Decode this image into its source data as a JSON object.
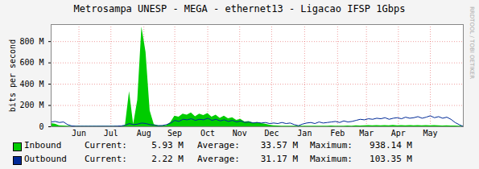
{
  "chart_data": {
    "type": "area",
    "title": "Metrosampa UNESP - MEGA - ethernet13 - Ligacao IFSP 1Gbps",
    "y_label": "bits per second",
    "annotations": [
      {
        "text": "RRDTOOL / TOBI OETIKER"
      }
    ],
    "x": [
      0,
      4,
      8,
      12,
      16,
      20,
      24,
      28,
      32,
      36,
      40,
      44,
      48,
      52,
      56,
      60,
      64,
      68,
      72,
      76,
      80,
      84,
      88,
      92,
      96,
      100,
      104,
      108,
      112,
      116,
      120,
      124,
      128,
      132,
      136,
      140,
      144,
      148,
      152,
      156,
      160,
      164,
      168,
      172,
      176,
      180,
      184,
      188,
      192,
      196,
      200,
      204,
      208,
      212,
      216,
      220,
      224,
      228,
      232,
      236,
      240,
      244,
      248,
      252,
      256,
      260,
      264,
      268,
      272,
      276,
      280,
      284,
      288,
      292,
      296,
      300,
      304,
      308,
      312,
      316,
      320,
      324,
      328,
      332,
      336,
      340,
      344,
      348,
      352,
      356,
      360,
      364,
      368,
      372,
      376,
      380,
      384,
      388,
      392,
      396,
      400
    ],
    "xlim": [
      0,
      400
    ],
    "xticks": [
      {
        "value": 27,
        "label": "Jun"
      },
      {
        "value": 58,
        "label": "Jul"
      },
      {
        "value": 90,
        "label": "Aug"
      },
      {
        "value": 120,
        "label": "Sep"
      },
      {
        "value": 152,
        "label": "Oct"
      },
      {
        "value": 183,
        "label": "Nov"
      },
      {
        "value": 214,
        "label": "Dec"
      },
      {
        "value": 246,
        "label": "Jan"
      },
      {
        "value": 278,
        "label": "Feb"
      },
      {
        "value": 306,
        "label": "Mar"
      },
      {
        "value": 337,
        "label": "Apr"
      },
      {
        "value": 368,
        "label": "May"
      }
    ],
    "ylim": [
      0,
      960000000
    ],
    "yticks": [
      0,
      {
        "value": 200000000,
        "label": "200 M"
      },
      {
        "value": 400000000,
        "label": "400 M"
      },
      {
        "value": 600000000,
        "label": "600 M"
      },
      {
        "value": 800000000,
        "label": "800 M"
      }
    ],
    "grid": true,
    "legend": "bottom",
    "stats_names": [
      "Current:",
      "Average:",
      "Maximum:"
    ],
    "series": [
      {
        "name": "Inbound",
        "type": "area",
        "color": "#00cc00",
        "stats": [
          5930000,
          33570000,
          938140000
        ],
        "stats_labels": [
          "5.93 M",
          "33.57 M",
          "938.14 M"
        ],
        "values": [
          30000000,
          25000000,
          10000000,
          8000000,
          5000000,
          4000000,
          3000000,
          3000000,
          3000000,
          3000000,
          3000000,
          3000000,
          3000000,
          3000000,
          3000000,
          3000000,
          3000000,
          4000000,
          10000000,
          330000000,
          20000000,
          250000000,
          938000000,
          700000000,
          150000000,
          20000000,
          10000000,
          8000000,
          10000000,
          40000000,
          100000000,
          90000000,
          120000000,
          110000000,
          130000000,
          95000000,
          120000000,
          105000000,
          125000000,
          90000000,
          110000000,
          80000000,
          100000000,
          75000000,
          85000000,
          60000000,
          70000000,
          45000000,
          50000000,
          35000000,
          40000000,
          30000000,
          25000000,
          15000000,
          10000000,
          8000000,
          6000000,
          5000000,
          5000000,
          5000000,
          5000000,
          5000000,
          5000000,
          6000000,
          5000000,
          5000000,
          6000000,
          5000000,
          8000000,
          6000000,
          5000000,
          6000000,
          8000000,
          6000000,
          10000000,
          8000000,
          10000000,
          12000000,
          10000000,
          12000000,
          10000000,
          12000000,
          10000000,
          14000000,
          10000000,
          12000000,
          10000000,
          12000000,
          10000000,
          12000000,
          10000000,
          12000000,
          10000000,
          12000000,
          10000000,
          8000000,
          10000000,
          8000000,
          7000000,
          6000000,
          6000000
        ]
      },
      {
        "name": "Outbound",
        "type": "line",
        "color": "#002a97",
        "stats": [
          2220000,
          31170000,
          103350000
        ],
        "stats_labels": [
          "2.22 M",
          "31.17 M",
          "103.35 M"
        ],
        "values": [
          45000000,
          50000000,
          40000000,
          45000000,
          20000000,
          8000000,
          5000000,
          5000000,
          5000000,
          5000000,
          5000000,
          5000000,
          5000000,
          5000000,
          5000000,
          5000000,
          6000000,
          8000000,
          15000000,
          30000000,
          20000000,
          25000000,
          35000000,
          30000000,
          20000000,
          15000000,
          10000000,
          12000000,
          20000000,
          35000000,
          60000000,
          50000000,
          70000000,
          65000000,
          75000000,
          60000000,
          70000000,
          65000000,
          80000000,
          60000000,
          70000000,
          55000000,
          65000000,
          50000000,
          60000000,
          45000000,
          55000000,
          40000000,
          45000000,
          35000000,
          40000000,
          35000000,
          40000000,
          30000000,
          35000000,
          30000000,
          40000000,
          30000000,
          35000000,
          20000000,
          10000000,
          25000000,
          35000000,
          40000000,
          30000000,
          45000000,
          35000000,
          40000000,
          45000000,
          50000000,
          40000000,
          55000000,
          45000000,
          50000000,
          60000000,
          70000000,
          65000000,
          75000000,
          70000000,
          80000000,
          75000000,
          85000000,
          70000000,
          80000000,
          85000000,
          75000000,
          90000000,
          80000000,
          85000000,
          95000000,
          80000000,
          90000000,
          103000000,
          85000000,
          95000000,
          80000000,
          90000000,
          70000000,
          40000000,
          20000000,
          2000000
        ]
      }
    ]
  }
}
